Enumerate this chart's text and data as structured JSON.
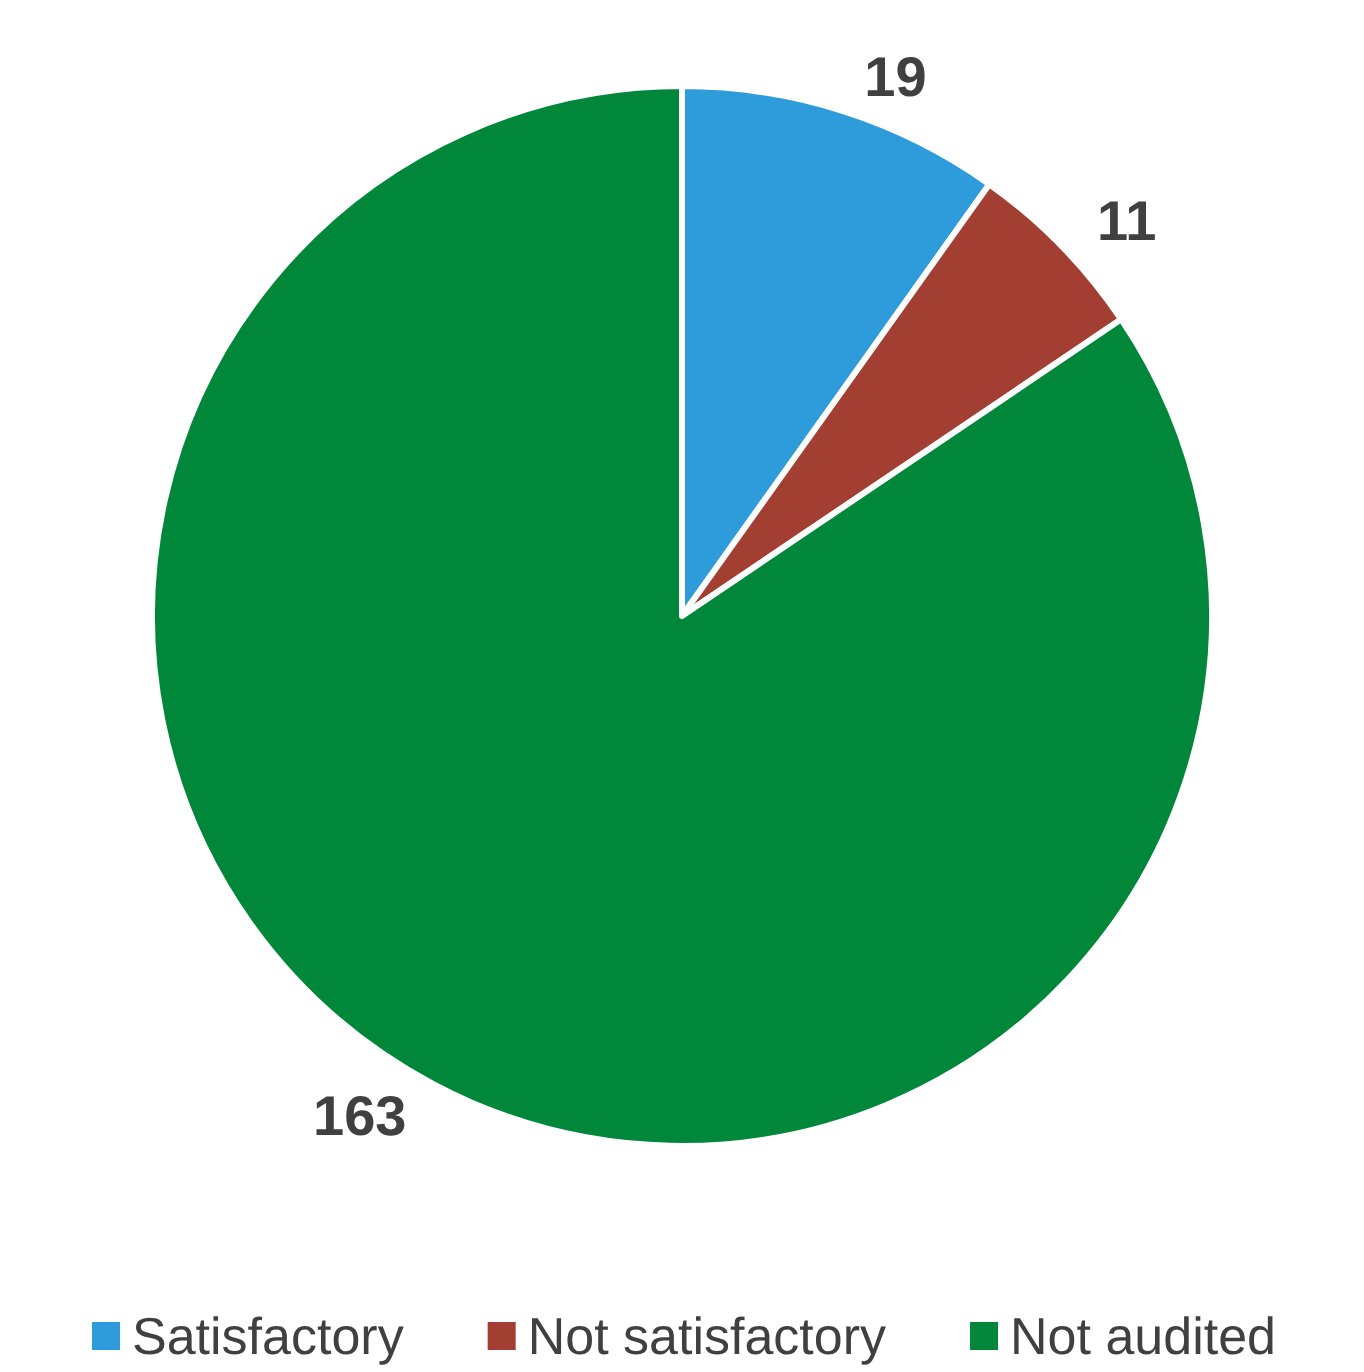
{
  "chart_data": {
    "type": "pie",
    "categories": [
      "Satisfactory",
      "Not satisfactory",
      "Not audited"
    ],
    "values": [
      19,
      11,
      163
    ],
    "colors": [
      "#2e9cdb",
      "#a33f32",
      "#00873a"
    ],
    "data_labels": true,
    "legend": "bottom"
  }
}
